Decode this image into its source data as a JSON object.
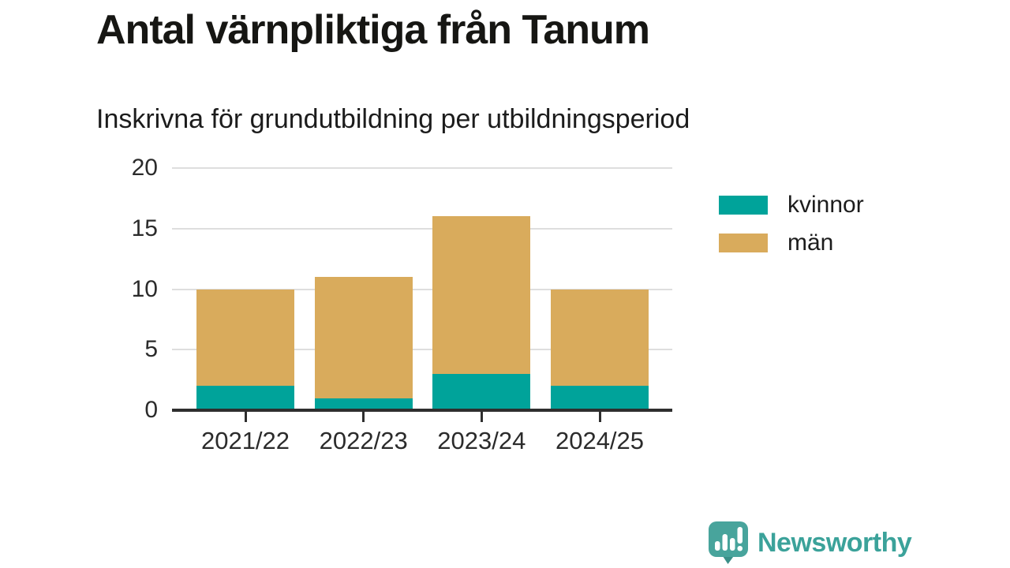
{
  "header": {
    "title": "Antal värnpliktiga från Tanum",
    "subtitle": "Inskrivna för grundutbildning per utbildningsperiod"
  },
  "chart_data": {
    "type": "bar",
    "stacked": true,
    "title": "Antal värnpliktiga från Tanum",
    "subtitle": "Inskrivna för grundutbildning per utbildningsperiod",
    "categories": [
      "2021/22",
      "2022/23",
      "2023/24",
      "2024/25"
    ],
    "series": [
      {
        "name": "kvinnor",
        "color": "#00a39a",
        "values": [
          2,
          1,
          3,
          2
        ]
      },
      {
        "name": "män",
        "color": "#d9ab5c",
        "values": [
          8,
          10,
          13,
          8
        ]
      }
    ],
    "totals": [
      10,
      11,
      16,
      10
    ],
    "ylim": [
      0,
      20
    ],
    "yticks": [
      0,
      5,
      10,
      15,
      20
    ],
    "grid": true,
    "legend_position": "right",
    "axis_color": "#2e2e2e",
    "gridline_color": "#dedede"
  },
  "branding": {
    "logo_text": "Newsworthy",
    "text_color": "#3ba29a",
    "icon_color": "#48a49c",
    "icon_tail_color": "#3a8f88"
  }
}
